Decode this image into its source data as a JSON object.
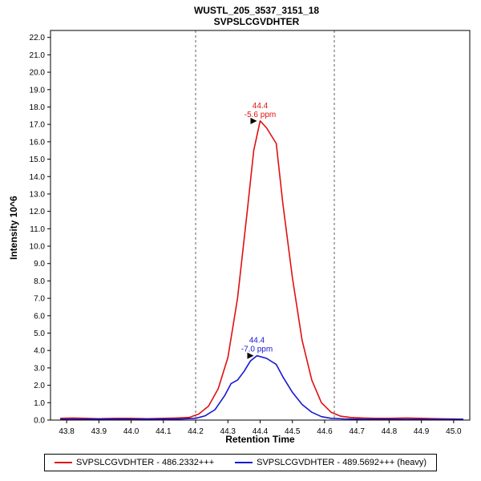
{
  "header": {
    "title_line1": "WUSTL_205_3537_3151_18",
    "title_line2": "SVPSLCGVDHTER"
  },
  "chart_data": {
    "type": "line",
    "title": "WUSTL_205_3537_3151_18",
    "subtitle": "SVPSLCGVDHTER",
    "xlabel": "Retention Time",
    "ylabel": "Intensity 10^6",
    "xlim": [
      43.75,
      45.05
    ],
    "ylim": [
      0,
      22.4
    ],
    "grid": false,
    "legend_position": "bottom",
    "x_tick_labels": [
      "43.8",
      "43.9",
      "44.0",
      "44.1",
      "44.2",
      "44.3",
      "44.4",
      "44.5",
      "44.6",
      "44.7",
      "44.8",
      "44.9",
      "45.0"
    ],
    "y_tick_labels": [
      "0.0",
      "1.0",
      "2.0",
      "3.0",
      "4.0",
      "5.0",
      "6.0",
      "7.0",
      "8.0",
      "9.0",
      "10.0",
      "11.0",
      "12.0",
      "13.0",
      "14.0",
      "15.0",
      "16.0",
      "17.0",
      "18.0",
      "19.0",
      "20.0",
      "21.0",
      "22.0"
    ],
    "boundaries": [
      44.2,
      44.63
    ],
    "boundary_style": "dashed",
    "series": [
      {
        "name": "SVPSLCGVDHTER - 486.2332+++",
        "color": "#e01010",
        "annotation": {
          "rt": "44.4",
          "ppm": "-5.6 ppm",
          "x": 44.4,
          "y": 17.2
        },
        "points": [
          [
            43.78,
            0.1
          ],
          [
            43.82,
            0.12
          ],
          [
            43.86,
            0.1
          ],
          [
            43.9,
            0.08
          ],
          [
            43.95,
            0.1
          ],
          [
            44.0,
            0.1
          ],
          [
            44.05,
            0.08
          ],
          [
            44.1,
            0.1
          ],
          [
            44.14,
            0.12
          ],
          [
            44.18,
            0.15
          ],
          [
            44.21,
            0.35
          ],
          [
            44.24,
            0.8
          ],
          [
            44.27,
            1.8
          ],
          [
            44.3,
            3.6
          ],
          [
            44.33,
            7.0
          ],
          [
            44.36,
            12.0
          ],
          [
            44.38,
            15.5
          ],
          [
            44.4,
            17.2
          ],
          [
            44.42,
            16.8
          ],
          [
            44.45,
            15.9
          ],
          [
            44.47,
            12.5
          ],
          [
            44.5,
            8.2
          ],
          [
            44.53,
            4.6
          ],
          [
            44.56,
            2.3
          ],
          [
            44.59,
            1.0
          ],
          [
            44.62,
            0.45
          ],
          [
            44.65,
            0.22
          ],
          [
            44.68,
            0.15
          ],
          [
            44.72,
            0.12
          ],
          [
            44.76,
            0.1
          ],
          [
            44.8,
            0.1
          ],
          [
            44.85,
            0.12
          ],
          [
            44.9,
            0.1
          ],
          [
            44.95,
            0.08
          ],
          [
            45.0,
            0.06
          ],
          [
            45.03,
            0.05
          ]
        ]
      },
      {
        "name": "SVPSLCGVDHTER - 489.5692+++ (heavy)",
        "color": "#1818d0",
        "annotation": {
          "rt": "44.4",
          "ppm": "-7.0 ppm",
          "x": 44.39,
          "y": 3.7
        },
        "points": [
          [
            43.78,
            0.05
          ],
          [
            43.85,
            0.05
          ],
          [
            43.92,
            0.06
          ],
          [
            44.0,
            0.05
          ],
          [
            44.08,
            0.06
          ],
          [
            44.15,
            0.06
          ],
          [
            44.2,
            0.1
          ],
          [
            44.23,
            0.25
          ],
          [
            44.26,
            0.6
          ],
          [
            44.29,
            1.4
          ],
          [
            44.31,
            2.1
          ],
          [
            44.33,
            2.3
          ],
          [
            44.35,
            2.8
          ],
          [
            44.37,
            3.4
          ],
          [
            44.39,
            3.7
          ],
          [
            44.42,
            3.55
          ],
          [
            44.45,
            3.2
          ],
          [
            44.47,
            2.5
          ],
          [
            44.5,
            1.6
          ],
          [
            44.53,
            0.9
          ],
          [
            44.56,
            0.45
          ],
          [
            44.59,
            0.2
          ],
          [
            44.62,
            0.1
          ],
          [
            44.66,
            0.07
          ],
          [
            44.72,
            0.05
          ],
          [
            44.8,
            0.05
          ],
          [
            44.9,
            0.04
          ],
          [
            45.0,
            0.04
          ],
          [
            45.03,
            0.04
          ]
        ]
      }
    ]
  }
}
